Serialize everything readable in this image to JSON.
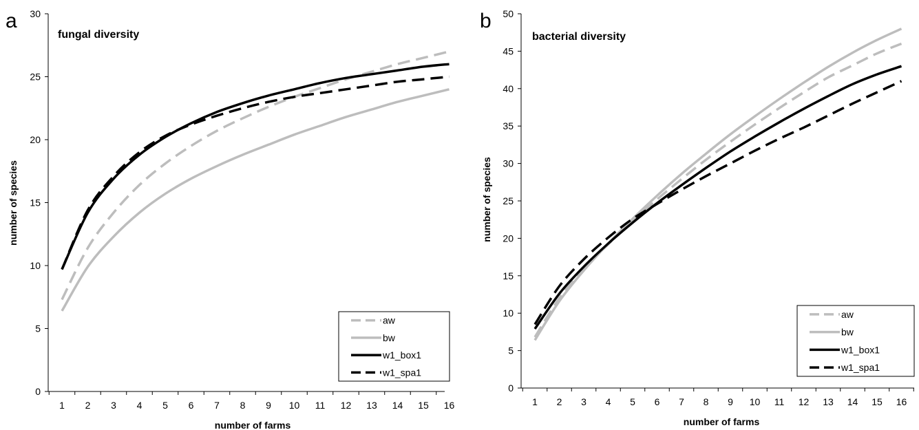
{
  "chart_data": [
    {
      "panel_letter": "a",
      "type": "line",
      "title": "fungal diversity",
      "xlabel": "number of farms",
      "ylabel": "number of species",
      "x": [
        1,
        2,
        3,
        4,
        5,
        6,
        7,
        8,
        9,
        10,
        11,
        12,
        13,
        14,
        15,
        16
      ],
      "xlim": [
        1,
        16
      ],
      "ylim": [
        0,
        30
      ],
      "yticks": [
        0,
        5,
        10,
        15,
        20,
        25,
        30
      ],
      "grid": false,
      "legend_position": "bottom-right",
      "series": [
        {
          "name": "aw",
          "color": "#bdbdbd",
          "style": "dashed",
          "values": [
            7.3,
            11.4,
            14.2,
            16.4,
            18.1,
            19.5,
            20.7,
            21.7,
            22.6,
            23.4,
            24.1,
            24.8,
            25.4,
            26.0,
            26.5,
            27.0
          ]
        },
        {
          "name": "bw",
          "color": "#bdbdbd",
          "style": "solid",
          "values": [
            6.4,
            9.9,
            12.3,
            14.2,
            15.7,
            16.9,
            17.9,
            18.8,
            19.6,
            20.4,
            21.1,
            21.8,
            22.4,
            23.0,
            23.5,
            24.0
          ]
        },
        {
          "name": "w1_box1",
          "color": "#000000",
          "style": "solid",
          "values": [
            9.7,
            14.2,
            16.9,
            18.8,
            20.2,
            21.3,
            22.2,
            22.9,
            23.5,
            24.0,
            24.5,
            24.9,
            25.2,
            25.5,
            25.8,
            26.0
          ]
        },
        {
          "name": "w1_spa1",
          "color": "#000000",
          "style": "dashed",
          "values": [
            9.7,
            14.4,
            17.1,
            19.0,
            20.3,
            21.2,
            21.9,
            22.5,
            23.0,
            23.4,
            23.7,
            24.0,
            24.3,
            24.6,
            24.8,
            25.0
          ]
        }
      ]
    },
    {
      "panel_letter": "b",
      "type": "line",
      "title": "bacterial diversity",
      "xlabel": "number of farms",
      "ylabel": "number of species",
      "x": [
        1,
        2,
        3,
        4,
        5,
        6,
        7,
        8,
        9,
        10,
        11,
        12,
        13,
        14,
        15,
        16
      ],
      "xlim": [
        1,
        16
      ],
      "ylim": [
        0,
        50
      ],
      "yticks": [
        0,
        5,
        10,
        15,
        20,
        25,
        30,
        35,
        40,
        45,
        50
      ],
      "grid": false,
      "legend_position": "bottom-right",
      "series": [
        {
          "name": "aw",
          "color": "#bdbdbd",
          "style": "dashed",
          "values": [
            6.8,
            12.0,
            15.9,
            19.2,
            22.3,
            25.2,
            27.9,
            30.5,
            32.9,
            35.2,
            37.4,
            39.5,
            41.5,
            43.1,
            44.7,
            46.0
          ]
        },
        {
          "name": "bw",
          "color": "#bdbdbd",
          "style": "solid",
          "values": [
            6.4,
            11.6,
            15.7,
            19.3,
            22.6,
            25.7,
            28.6,
            31.3,
            33.9,
            36.3,
            38.6,
            40.8,
            42.9,
            44.8,
            46.5,
            48.0
          ]
        },
        {
          "name": "w1_box1",
          "color": "#000000",
          "style": "solid",
          "values": [
            7.9,
            12.6,
            16.2,
            19.3,
            22.1,
            24.7,
            27.1,
            29.4,
            31.6,
            33.6,
            35.5,
            37.3,
            39.0,
            40.6,
            41.9,
            43.0
          ]
        },
        {
          "name": "w1_spa1",
          "color": "#000000",
          "style": "dashed",
          "values": [
            8.5,
            13.6,
            17.2,
            20.1,
            22.6,
            24.6,
            26.5,
            28.3,
            30.0,
            31.7,
            33.3,
            34.8,
            36.4,
            38.0,
            39.5,
            41.0
          ]
        }
      ]
    }
  ]
}
